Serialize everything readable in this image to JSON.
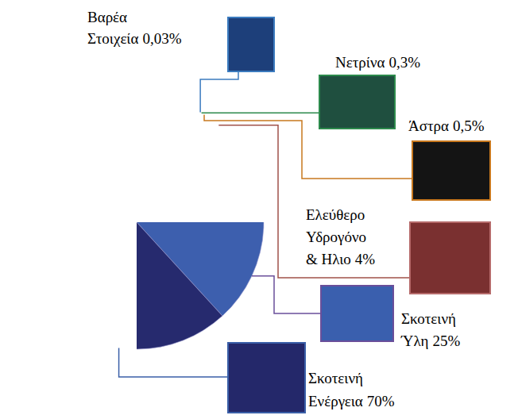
{
  "chart_data": {
    "type": "pie",
    "categories": [
      "Βαρέα Στοιχεία",
      "Νετρίνα",
      "Άστρα",
      "Ελεύθερο Υδρογόνο & Ηλιο",
      "Σκοτεινή Ύλη",
      "Σκοτεινή Ενέργεια"
    ],
    "values": [
      0.03,
      0.3,
      0.5,
      4,
      25,
      70
    ],
    "value_labels": [
      "0,03%",
      "0,3%",
      "0,5%",
      "4%",
      "25%",
      "70%"
    ],
    "colors": [
      "#1fb5c8",
      "#3aa935",
      "#f39a1e",
      "#e61e25",
      "#3d5fae",
      "#262a6e"
    ],
    "data_labels": true
  }
}
